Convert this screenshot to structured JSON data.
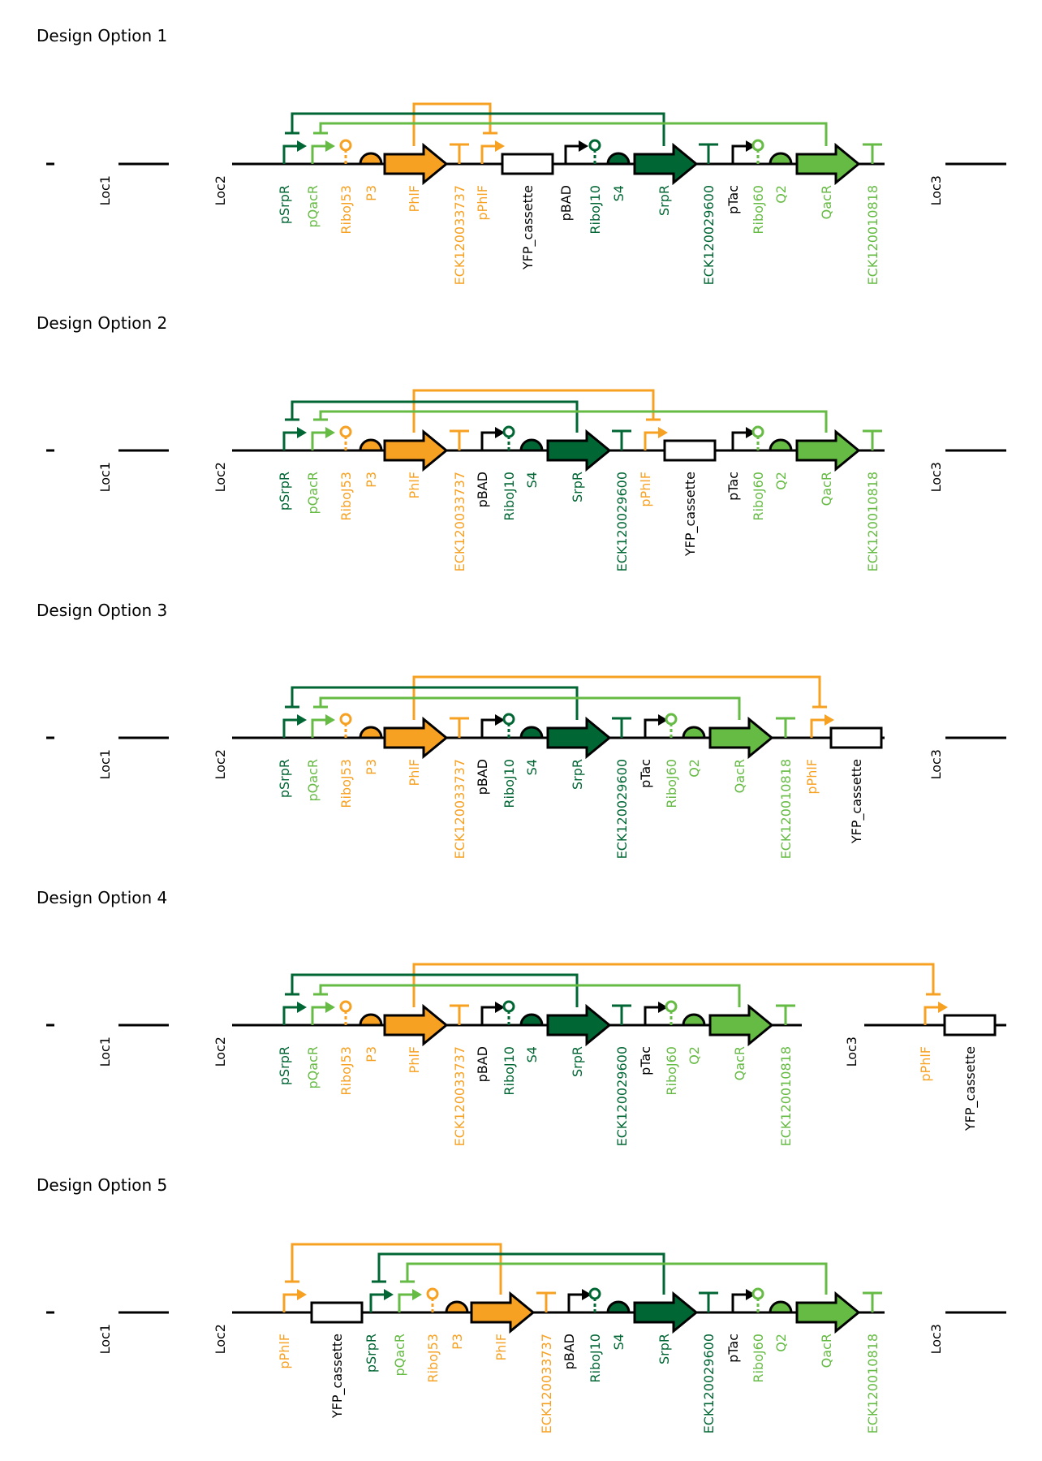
{
  "colors": {
    "black": "#000000",
    "dark_green": "#006633",
    "light_green": "#66bb44",
    "orange": "#f7a123",
    "white": "#ffffff"
  },
  "designs": [
    {
      "title": "Design Option 1",
      "locus_labels": [
        "Loc1",
        "Loc2",
        "Loc3"
      ],
      "parts": [
        {
          "type": "promoter",
          "label": "pSrpR",
          "color": "dark_green"
        },
        {
          "type": "promoter",
          "label": "pQacR",
          "color": "light_green"
        },
        {
          "type": "ribozyme",
          "label": "RiboJ53",
          "color": "orange"
        },
        {
          "type": "rbs",
          "label": "P3",
          "color": "orange"
        },
        {
          "type": "cds",
          "label": "PhlF",
          "color": "orange"
        },
        {
          "type": "terminator",
          "label": "ECK120033737",
          "color": "orange"
        },
        {
          "type": "promoter",
          "label": "pPhlF",
          "color": "orange"
        },
        {
          "type": "cassette",
          "label": "YFP_cassette",
          "color": "black"
        },
        {
          "type": "promoter",
          "label": "pBAD",
          "color": "black"
        },
        {
          "type": "ribozyme",
          "label": "RiboJ10",
          "color": "dark_green"
        },
        {
          "type": "rbs",
          "label": "S4",
          "color": "dark_green"
        },
        {
          "type": "cds",
          "label": "SrpR",
          "color": "dark_green"
        },
        {
          "type": "terminator",
          "label": "ECK120029600",
          "color": "dark_green"
        },
        {
          "type": "promoter",
          "label": "pTac",
          "color": "black"
        },
        {
          "type": "ribozyme",
          "label": "RiboJ60",
          "color": "light_green"
        },
        {
          "type": "rbs",
          "label": "Q2",
          "color": "light_green"
        },
        {
          "type": "cds",
          "label": "QacR",
          "color": "light_green"
        },
        {
          "type": "terminator",
          "label": "ECK120010818",
          "color": "light_green"
        }
      ],
      "repressions": [
        {
          "from": "PhlF",
          "to": "pPhlF",
          "color": "orange"
        },
        {
          "from": "SrpR",
          "to": "pSrpR",
          "color": "dark_green"
        },
        {
          "from": "QacR",
          "to": "pQacR",
          "color": "light_green"
        }
      ]
    },
    {
      "title": "Design Option 2",
      "locus_labels": [
        "Loc1",
        "Loc2",
        "Loc3"
      ],
      "parts": [
        {
          "type": "promoter",
          "label": "pSrpR",
          "color": "dark_green"
        },
        {
          "type": "promoter",
          "label": "pQacR",
          "color": "light_green"
        },
        {
          "type": "ribozyme",
          "label": "RiboJ53",
          "color": "orange"
        },
        {
          "type": "rbs",
          "label": "P3",
          "color": "orange"
        },
        {
          "type": "cds",
          "label": "PhlF",
          "color": "orange"
        },
        {
          "type": "terminator",
          "label": "ECK120033737",
          "color": "orange"
        },
        {
          "type": "promoter",
          "label": "pBAD",
          "color": "black"
        },
        {
          "type": "ribozyme",
          "label": "RiboJ10",
          "color": "dark_green"
        },
        {
          "type": "rbs",
          "label": "S4",
          "color": "dark_green"
        },
        {
          "type": "cds",
          "label": "SrpR",
          "color": "dark_green"
        },
        {
          "type": "terminator",
          "label": "ECK120029600",
          "color": "dark_green"
        },
        {
          "type": "promoter",
          "label": "pPhlF",
          "color": "orange"
        },
        {
          "type": "cassette",
          "label": "YFP_cassette",
          "color": "black"
        },
        {
          "type": "promoter",
          "label": "pTac",
          "color": "black"
        },
        {
          "type": "ribozyme",
          "label": "RiboJ60",
          "color": "light_green"
        },
        {
          "type": "rbs",
          "label": "Q2",
          "color": "light_green"
        },
        {
          "type": "cds",
          "label": "QacR",
          "color": "light_green"
        },
        {
          "type": "terminator",
          "label": "ECK120010818",
          "color": "light_green"
        }
      ],
      "repressions": [
        {
          "from": "PhlF",
          "to": "pPhlF",
          "color": "orange"
        },
        {
          "from": "SrpR",
          "to": "pSrpR",
          "color": "dark_green"
        },
        {
          "from": "QacR",
          "to": "pQacR",
          "color": "light_green"
        }
      ]
    },
    {
      "title": "Design Option 3",
      "locus_labels": [
        "Loc1",
        "Loc2",
        "Loc3"
      ],
      "parts": [
        {
          "type": "promoter",
          "label": "pSrpR",
          "color": "dark_green"
        },
        {
          "type": "promoter",
          "label": "pQacR",
          "color": "light_green"
        },
        {
          "type": "ribozyme",
          "label": "RiboJ53",
          "color": "orange"
        },
        {
          "type": "rbs",
          "label": "P3",
          "color": "orange"
        },
        {
          "type": "cds",
          "label": "PhlF",
          "color": "orange"
        },
        {
          "type": "terminator",
          "label": "ECK120033737",
          "color": "orange"
        },
        {
          "type": "promoter",
          "label": "pBAD",
          "color": "black"
        },
        {
          "type": "ribozyme",
          "label": "RiboJ10",
          "color": "dark_green"
        },
        {
          "type": "rbs",
          "label": "S4",
          "color": "dark_green"
        },
        {
          "type": "cds",
          "label": "SrpR",
          "color": "dark_green"
        },
        {
          "type": "terminator",
          "label": "ECK120029600",
          "color": "dark_green"
        },
        {
          "type": "promoter",
          "label": "pTac",
          "color": "black"
        },
        {
          "type": "ribozyme",
          "label": "RiboJ60",
          "color": "light_green"
        },
        {
          "type": "rbs",
          "label": "Q2",
          "color": "light_green"
        },
        {
          "type": "cds",
          "label": "QacR",
          "color": "light_green"
        },
        {
          "type": "terminator",
          "label": "ECK120010818",
          "color": "light_green"
        },
        {
          "type": "promoter",
          "label": "pPhlF",
          "color": "orange"
        },
        {
          "type": "cassette",
          "label": "YFP_cassette",
          "color": "black"
        }
      ],
      "repressions": [
        {
          "from": "PhlF",
          "to": "pPhlF",
          "color": "orange"
        },
        {
          "from": "SrpR",
          "to": "pSrpR",
          "color": "dark_green"
        },
        {
          "from": "QacR",
          "to": "pQacR",
          "color": "light_green"
        }
      ]
    },
    {
      "title": "Design Option 4",
      "locus_labels": [
        "Loc1",
        "Loc2",
        "Loc3"
      ],
      "parts": [
        {
          "type": "promoter",
          "label": "pSrpR",
          "color": "dark_green"
        },
        {
          "type": "promoter",
          "label": "pQacR",
          "color": "light_green"
        },
        {
          "type": "ribozyme",
          "label": "RiboJ53",
          "color": "orange"
        },
        {
          "type": "rbs",
          "label": "P3",
          "color": "orange"
        },
        {
          "type": "cds",
          "label": "PhlF",
          "color": "orange"
        },
        {
          "type": "terminator",
          "label": "ECK120033737",
          "color": "orange"
        },
        {
          "type": "promoter",
          "label": "pBAD",
          "color": "black"
        },
        {
          "type": "ribozyme",
          "label": "RiboJ10",
          "color": "dark_green"
        },
        {
          "type": "rbs",
          "label": "S4",
          "color": "dark_green"
        },
        {
          "type": "cds",
          "label": "SrpR",
          "color": "dark_green"
        },
        {
          "type": "terminator",
          "label": "ECK120029600",
          "color": "dark_green"
        },
        {
          "type": "promoter",
          "label": "pTac",
          "color": "black"
        },
        {
          "type": "ribozyme",
          "label": "RiboJ60",
          "color": "light_green"
        },
        {
          "type": "rbs",
          "label": "Q2",
          "color": "light_green"
        },
        {
          "type": "cds",
          "label": "QacR",
          "color": "light_green"
        },
        {
          "type": "terminator",
          "label": "ECK120010818",
          "color": "light_green"
        },
        {
          "type": "promoter",
          "label": "pPhlF",
          "color": "orange"
        },
        {
          "type": "cassette",
          "label": "YFP_cassette",
          "color": "black"
        }
      ],
      "repressions": [
        {
          "from": "PhlF",
          "to": "pPhlF",
          "color": "orange"
        },
        {
          "from": "SrpR",
          "to": "pSrpR",
          "color": "dark_green"
        },
        {
          "from": "QacR",
          "to": "pQacR",
          "color": "light_green"
        }
      ]
    },
    {
      "title": "Design Option 5",
      "locus_labels": [
        "Loc1",
        "Loc2",
        "Loc3"
      ],
      "parts": [
        {
          "type": "promoter",
          "label": "pPhlF",
          "color": "orange"
        },
        {
          "type": "cassette",
          "label": "YFP_cassette",
          "color": "black"
        },
        {
          "type": "promoter",
          "label": "pSrpR",
          "color": "dark_green"
        },
        {
          "type": "promoter",
          "label": "pQacR",
          "color": "light_green"
        },
        {
          "type": "ribozyme",
          "label": "RiboJ53",
          "color": "orange"
        },
        {
          "type": "rbs",
          "label": "P3",
          "color": "orange"
        },
        {
          "type": "cds",
          "label": "PhlF",
          "color": "orange"
        },
        {
          "type": "terminator",
          "label": "ECK120033737",
          "color": "orange"
        },
        {
          "type": "promoter",
          "label": "pBAD",
          "color": "black"
        },
        {
          "type": "ribozyme",
          "label": "RiboJ10",
          "color": "dark_green"
        },
        {
          "type": "rbs",
          "label": "S4",
          "color": "dark_green"
        },
        {
          "type": "cds",
          "label": "SrpR",
          "color": "dark_green"
        },
        {
          "type": "terminator",
          "label": "ECK120029600",
          "color": "dark_green"
        },
        {
          "type": "promoter",
          "label": "pTac",
          "color": "black"
        },
        {
          "type": "ribozyme",
          "label": "RiboJ60",
          "color": "light_green"
        },
        {
          "type": "rbs",
          "label": "Q2",
          "color": "light_green"
        },
        {
          "type": "cds",
          "label": "QacR",
          "color": "light_green"
        },
        {
          "type": "terminator",
          "label": "ECK120010818",
          "color": "light_green"
        }
      ],
      "repressions": [
        {
          "from": "PhlF",
          "to": "pPhlF",
          "color": "orange"
        },
        {
          "from": "SrpR",
          "to": "pSrpR",
          "color": "dark_green"
        },
        {
          "from": "QacR",
          "to": "pQacR",
          "color": "light_green"
        }
      ]
    }
  ]
}
